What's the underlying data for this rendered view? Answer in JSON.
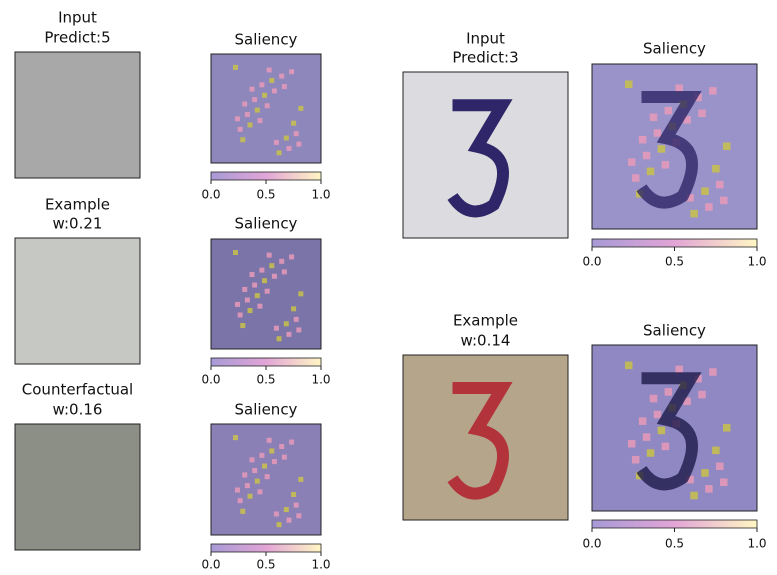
{
  "left": [
    {
      "image_title": [
        "Input",
        "Predict:5"
      ],
      "saliency_title": "Saliency",
      "colorbar_ticks": [
        "0.0",
        "0.5",
        "1.0"
      ]
    },
    {
      "image_title": [
        "Example",
        "w:0.21"
      ],
      "saliency_title": "Saliency",
      "colorbar_ticks": [
        "0.0",
        "0.5",
        "1.0"
      ]
    },
    {
      "image_title": [
        "Counterfactual",
        "w:0.16"
      ],
      "saliency_title": "Saliency",
      "colorbar_ticks": [
        "0.0",
        "0.5",
        "1.0"
      ]
    }
  ],
  "right": [
    {
      "image_title": [
        "Input",
        "Predict:3"
      ],
      "saliency_title": "Saliency",
      "colorbar_ticks": [
        "0.0",
        "0.5",
        "1.0"
      ]
    },
    {
      "image_title": [
        "Example",
        "w:0.14"
      ],
      "saliency_title": "Saliency",
      "colorbar_ticks": [
        "0.0",
        "0.5",
        "1.0"
      ]
    }
  ]
}
